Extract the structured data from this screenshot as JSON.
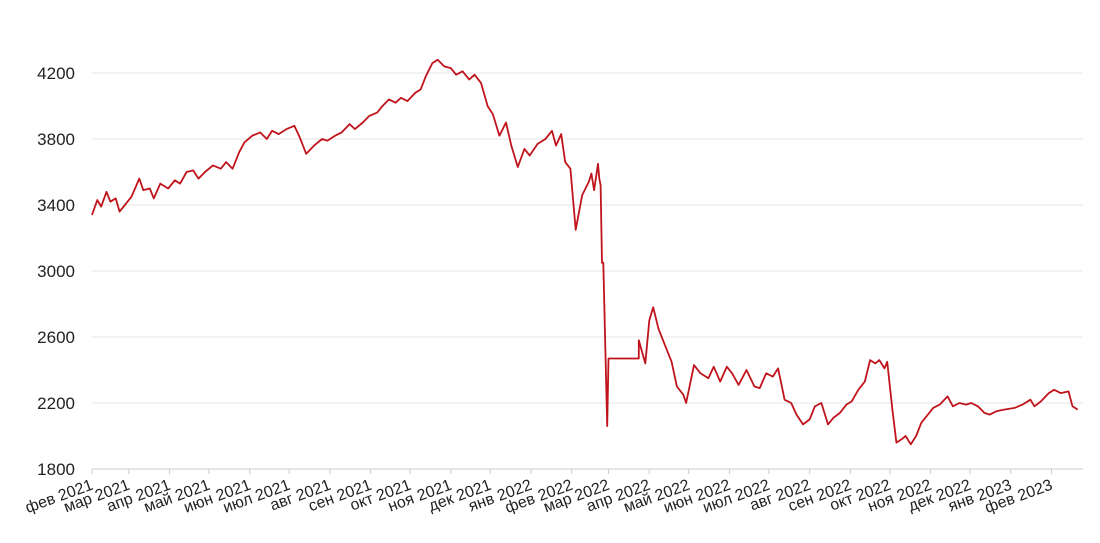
{
  "chart_data": {
    "type": "line",
    "title": "",
    "xlabel": "",
    "ylabel": "",
    "ylim": [
      1800,
      4400
    ],
    "yticks": [
      1800,
      2200,
      2600,
      3000,
      3400,
      3800,
      4200
    ],
    "ytick_labels": [
      "1800",
      "2200",
      "2600",
      "3000",
      "3400",
      "3800",
      "4200"
    ],
    "xtick_labels": [
      "фев 2021",
      "мар 2021",
      "апр 2021",
      "май 2021",
      "июн 2021",
      "июл 2021",
      "авг 2021",
      "сен 2021",
      "окт 2021",
      "ноя 2021",
      "дек 2021",
      "янв 2022",
      "фев 2022",
      "мар 2022",
      "апр 2022",
      "май 2022",
      "июн 2022",
      "июл 2022",
      "авг 2022",
      "сен 2022",
      "окт 2022",
      "ноя 2022",
      "дек 2022",
      "янв 2023",
      "фев 2023"
    ],
    "xtick_dates": [
      "2021-02-01",
      "2021-03-01",
      "2021-04-01",
      "2021-05-01",
      "2021-06-01",
      "2021-07-01",
      "2021-08-01",
      "2021-09-01",
      "2021-10-01",
      "2021-11-01",
      "2021-12-01",
      "2022-01-01",
      "2022-02-01",
      "2022-03-01",
      "2022-04-01",
      "2022-05-01",
      "2022-06-01",
      "2022-07-01",
      "2022-08-01",
      "2022-09-01",
      "2022-10-01",
      "2022-11-01",
      "2022-12-01",
      "2023-01-01",
      "2023-02-01"
    ],
    "xlim": [
      "2021-02-01",
      "2023-02-25"
    ],
    "grid": true,
    "line_color": "#c0141c",
    "grid_color": "#e6e6e6",
    "series": [
      {
        "points": [
          [
            "2021-02-01",
            3340
          ],
          [
            "2021-02-05",
            3430
          ],
          [
            "2021-02-08",
            3390
          ],
          [
            "2021-02-12",
            3480
          ],
          [
            "2021-02-15",
            3420
          ],
          [
            "2021-02-19",
            3440
          ],
          [
            "2021-02-22",
            3360
          ],
          [
            "2021-02-26",
            3400
          ],
          [
            "2021-03-03",
            3450
          ],
          [
            "2021-03-09",
            3560
          ],
          [
            "2021-03-12",
            3490
          ],
          [
            "2021-03-17",
            3500
          ],
          [
            "2021-03-20",
            3440
          ],
          [
            "2021-03-25",
            3530
          ],
          [
            "2021-03-31",
            3500
          ],
          [
            "2021-04-05",
            3550
          ],
          [
            "2021-04-09",
            3530
          ],
          [
            "2021-04-14",
            3600
          ],
          [
            "2021-04-19",
            3610
          ],
          [
            "2021-04-23",
            3560
          ],
          [
            "2021-04-28",
            3600
          ],
          [
            "2021-05-04",
            3640
          ],
          [
            "2021-05-10",
            3620
          ],
          [
            "2021-05-14",
            3660
          ],
          [
            "2021-05-19",
            3620
          ],
          [
            "2021-05-24",
            3720
          ],
          [
            "2021-05-28",
            3780
          ],
          [
            "2021-06-03",
            3820
          ],
          [
            "2021-06-09",
            3840
          ],
          [
            "2021-06-14",
            3800
          ],
          [
            "2021-06-18",
            3850
          ],
          [
            "2021-06-23",
            3830
          ],
          [
            "2021-06-29",
            3860
          ],
          [
            "2021-07-05",
            3880
          ],
          [
            "2021-07-09",
            3810
          ],
          [
            "2021-07-14",
            3710
          ],
          [
            "2021-07-20",
            3760
          ],
          [
            "2021-07-26",
            3800
          ],
          [
            "2021-07-30",
            3790
          ],
          [
            "2021-08-05",
            3820
          ],
          [
            "2021-08-10",
            3840
          ],
          [
            "2021-08-16",
            3890
          ],
          [
            "2021-08-20",
            3860
          ],
          [
            "2021-08-26",
            3900
          ],
          [
            "2021-08-31",
            3940
          ],
          [
            "2021-09-06",
            3960
          ],
          [
            "2021-09-10",
            4000
          ],
          [
            "2021-09-15",
            4040
          ],
          [
            "2021-09-20",
            4020
          ],
          [
            "2021-09-24",
            4050
          ],
          [
            "2021-09-29",
            4030
          ],
          [
            "2021-10-05",
            4080
          ],
          [
            "2021-10-09",
            4100
          ],
          [
            "2021-10-13",
            4180
          ],
          [
            "2021-10-18",
            4260
          ],
          [
            "2021-10-22",
            4280
          ],
          [
            "2021-10-27",
            4240
          ],
          [
            "2021-11-01",
            4230
          ],
          [
            "2021-11-05",
            4190
          ],
          [
            "2021-11-10",
            4210
          ],
          [
            "2021-11-15",
            4160
          ],
          [
            "2021-11-19",
            4190
          ],
          [
            "2021-11-24",
            4140
          ],
          [
            "2021-11-29",
            4000
          ],
          [
            "2021-12-03",
            3950
          ],
          [
            "2021-12-08",
            3820
          ],
          [
            "2021-12-13",
            3900
          ],
          [
            "2021-12-17",
            3760
          ],
          [
            "2021-12-22",
            3630
          ],
          [
            "2021-12-27",
            3740
          ],
          [
            "2021-12-31",
            3700
          ],
          [
            "2022-01-06",
            3770
          ],
          [
            "2022-01-12",
            3800
          ],
          [
            "2022-01-17",
            3850
          ],
          [
            "2022-01-20",
            3760
          ],
          [
            "2022-01-24",
            3830
          ],
          [
            "2022-01-27",
            3660
          ],
          [
            "2022-01-31",
            3620
          ],
          [
            "2022-02-04",
            3250
          ],
          [
            "2022-02-09",
            3460
          ],
          [
            "2022-02-14",
            3540
          ],
          [
            "2022-02-16",
            3590
          ],
          [
            "2022-02-18",
            3490
          ],
          [
            "2022-02-21",
            3650
          ],
          [
            "2022-02-22",
            3560
          ],
          [
            "2022-02-23",
            3520
          ],
          [
            "2022-02-24",
            3050
          ],
          [
            "2022-02-25",
            3050
          ],
          [
            "2022-02-28",
            2060
          ],
          [
            "2022-03-01",
            2470
          ],
          [
            "2022-03-24",
            2470
          ],
          [
            "2022-03-24",
            2580
          ],
          [
            "2022-03-29",
            2440
          ],
          [
            "2022-04-01",
            2700
          ],
          [
            "2022-04-04",
            2780
          ],
          [
            "2022-04-08",
            2650
          ],
          [
            "2022-04-13",
            2550
          ],
          [
            "2022-04-18",
            2450
          ],
          [
            "2022-04-22",
            2300
          ],
          [
            "2022-04-27",
            2250
          ],
          [
            "2022-04-29",
            2200
          ],
          [
            "2022-05-05",
            2430
          ],
          [
            "2022-05-10",
            2380
          ],
          [
            "2022-05-16",
            2350
          ],
          [
            "2022-05-20",
            2420
          ],
          [
            "2022-05-25",
            2330
          ],
          [
            "2022-05-30",
            2420
          ],
          [
            "2022-06-03",
            2380
          ],
          [
            "2022-06-08",
            2310
          ],
          [
            "2022-06-14",
            2400
          ],
          [
            "2022-06-20",
            2300
          ],
          [
            "2022-06-24",
            2290
          ],
          [
            "2022-06-29",
            2380
          ],
          [
            "2022-07-04",
            2360
          ],
          [
            "2022-07-08",
            2410
          ],
          [
            "2022-07-13",
            2220
          ],
          [
            "2022-07-18",
            2200
          ],
          [
            "2022-07-22",
            2130
          ],
          [
            "2022-07-27",
            2070
          ],
          [
            "2022-08-01",
            2100
          ],
          [
            "2022-08-05",
            2180
          ],
          [
            "2022-08-10",
            2200
          ],
          [
            "2022-08-15",
            2070
          ],
          [
            "2022-08-19",
            2110
          ],
          [
            "2022-08-24",
            2140
          ],
          [
            "2022-08-29",
            2190
          ],
          [
            "2022-09-02",
            2210
          ],
          [
            "2022-09-07",
            2280
          ],
          [
            "2022-09-12",
            2330
          ],
          [
            "2022-09-16",
            2460
          ],
          [
            "2022-09-20",
            2440
          ],
          [
            "2022-09-23",
            2460
          ],
          [
            "2022-09-27",
            2410
          ],
          [
            "2022-09-29",
            2450
          ],
          [
            "2022-10-03",
            2160
          ],
          [
            "2022-10-06",
            1960
          ],
          [
            "2022-10-10",
            1980
          ],
          [
            "2022-10-13",
            2000
          ],
          [
            "2022-10-17",
            1950
          ],
          [
            "2022-10-21",
            2000
          ],
          [
            "2022-10-25",
            2080
          ],
          [
            "2022-10-31",
            2140
          ],
          [
            "2022-11-03",
            2170
          ],
          [
            "2022-11-08",
            2190
          ],
          [
            "2022-11-14",
            2240
          ],
          [
            "2022-11-18",
            2180
          ],
          [
            "2022-11-23",
            2200
          ],
          [
            "2022-11-28",
            2190
          ],
          [
            "2022-12-02",
            2200
          ],
          [
            "2022-12-07",
            2180
          ],
          [
            "2022-12-12",
            2140
          ],
          [
            "2022-12-16",
            2130
          ],
          [
            "2022-12-21",
            2150
          ],
          [
            "2022-12-27",
            2160
          ],
          [
            "2023-01-04",
            2170
          ],
          [
            "2023-01-10",
            2190
          ],
          [
            "2023-01-16",
            2220
          ],
          [
            "2023-01-19",
            2180
          ],
          [
            "2023-01-24",
            2210
          ],
          [
            "2023-01-30",
            2260
          ],
          [
            "2023-02-03",
            2280
          ],
          [
            "2023-02-08",
            2260
          ],
          [
            "2023-02-14",
            2270
          ],
          [
            "2023-02-17",
            2180
          ],
          [
            "2023-02-21",
            2160
          ]
        ]
      }
    ]
  }
}
